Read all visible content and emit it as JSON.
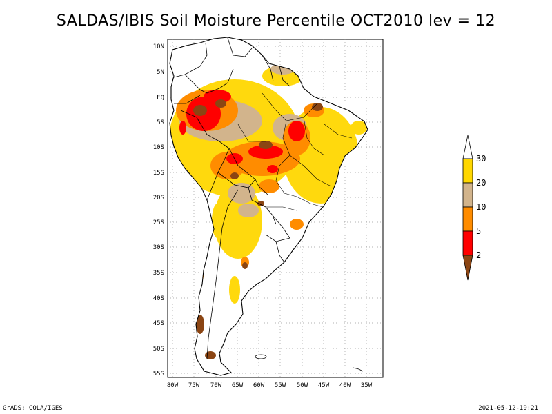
{
  "title": "SALDAS/IBIS Soil Moisture Percentile OCT2010 lev = 12",
  "map": {
    "lat_labels": [
      "10N",
      "5N",
      "EQ",
      "5S",
      "10S",
      "15S",
      "20S",
      "25S",
      "30S",
      "35S",
      "40S",
      "45S",
      "50S",
      "55S"
    ],
    "lon_labels": [
      "80W",
      "75W",
      "70W",
      "65W",
      "60W",
      "55W",
      "50W",
      "45W",
      "40W",
      "35W"
    ]
  },
  "legend": {
    "labels": [
      "2",
      "5",
      "10",
      "20",
      "30"
    ],
    "colors": [
      "#8b4513",
      "#ff0000",
      "#ff8c00",
      "#d2b48c",
      "#ffd700",
      "#ffffff"
    ]
  },
  "footer": {
    "left": "GrADS: COLA/IGES",
    "right": "2021-05-12-19:21"
  }
}
